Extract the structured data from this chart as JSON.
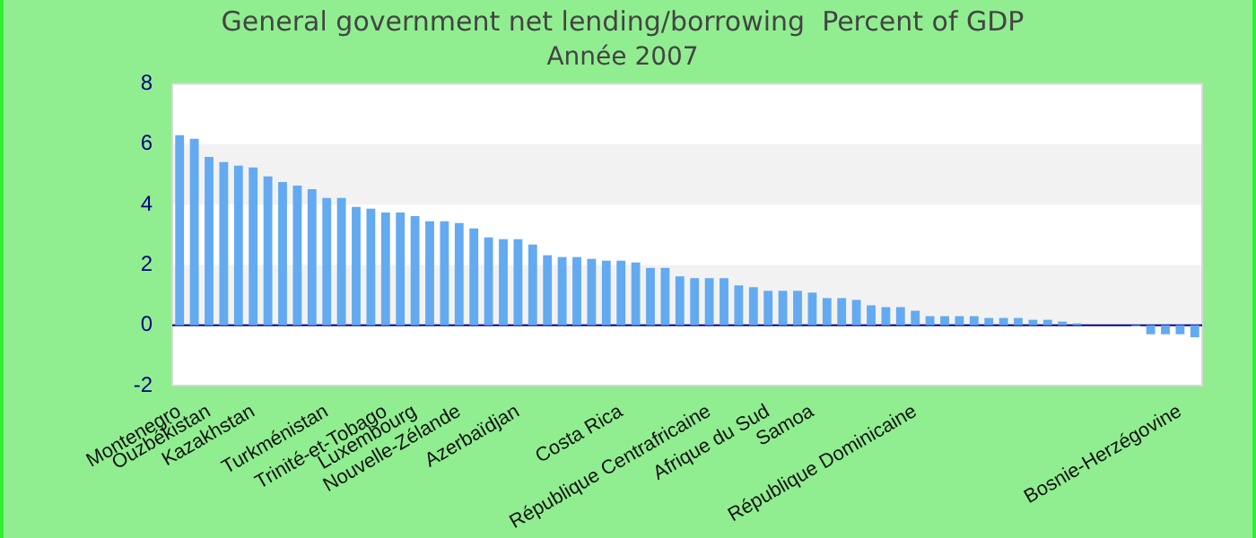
{
  "chart_data": {
    "type": "bar",
    "title": "General government net lending/borrowing  Percent of GDP",
    "subtitle": "Année 2007",
    "categories": [
      "Montenegro",
      null,
      "Ouzbékistan",
      null,
      null,
      "Kazakhstan",
      null,
      null,
      null,
      null,
      "Turkménistan",
      null,
      null,
      null,
      "Trinité-et-Tobago",
      null,
      "Luxembourg",
      null,
      null,
      "Nouvelle-Zélande",
      null,
      null,
      null,
      "Azerbaïdjan",
      null,
      null,
      null,
      null,
      null,
      null,
      "Costa Rica",
      null,
      null,
      null,
      null,
      null,
      "République Centrafricaine",
      null,
      null,
      null,
      "Afrique du Sud",
      null,
      null,
      "Samoa",
      null,
      null,
      null,
      null,
      null,
      null,
      "République Dominicaine",
      null,
      null,
      null,
      null,
      null,
      null,
      null,
      null,
      null,
      null,
      null,
      null,
      null,
      null,
      null,
      null,
      null,
      "Bosnie-Herzégovine",
      null
    ],
    "values": [
      6.3,
      6.18,
      5.58,
      5.41,
      5.29,
      5.23,
      4.93,
      4.75,
      4.63,
      4.51,
      4.22,
      4.22,
      3.92,
      3.86,
      3.74,
      3.74,
      3.62,
      3.45,
      3.45,
      3.39,
      3.21,
      2.91,
      2.85,
      2.85,
      2.67,
      2.32,
      2.26,
      2.26,
      2.2,
      2.14,
      2.14,
      2.08,
      1.9,
      1.9,
      1.62,
      1.56,
      1.56,
      1.56,
      1.32,
      1.26,
      1.14,
      1.14,
      1.14,
      1.08,
      0.9,
      0.9,
      0.84,
      0.66,
      0.6,
      0.6,
      0.48,
      0.3,
      0.3,
      0.3,
      0.3,
      0.24,
      0.24,
      0.24,
      0.18,
      0.18,
      0.12,
      0.06,
      0,
      0,
      0,
      -0.04,
      -0.3,
      -0.3,
      -0.3,
      -0.4
    ],
    "color": "#64aaf0",
    "ylim": [
      -2,
      8
    ],
    "yticks": [
      -2,
      0,
      2,
      4,
      6,
      8
    ],
    "ref_lines": [
      {
        "axis": "y",
        "value": 0,
        "color": "#000099"
      }
    ]
  }
}
